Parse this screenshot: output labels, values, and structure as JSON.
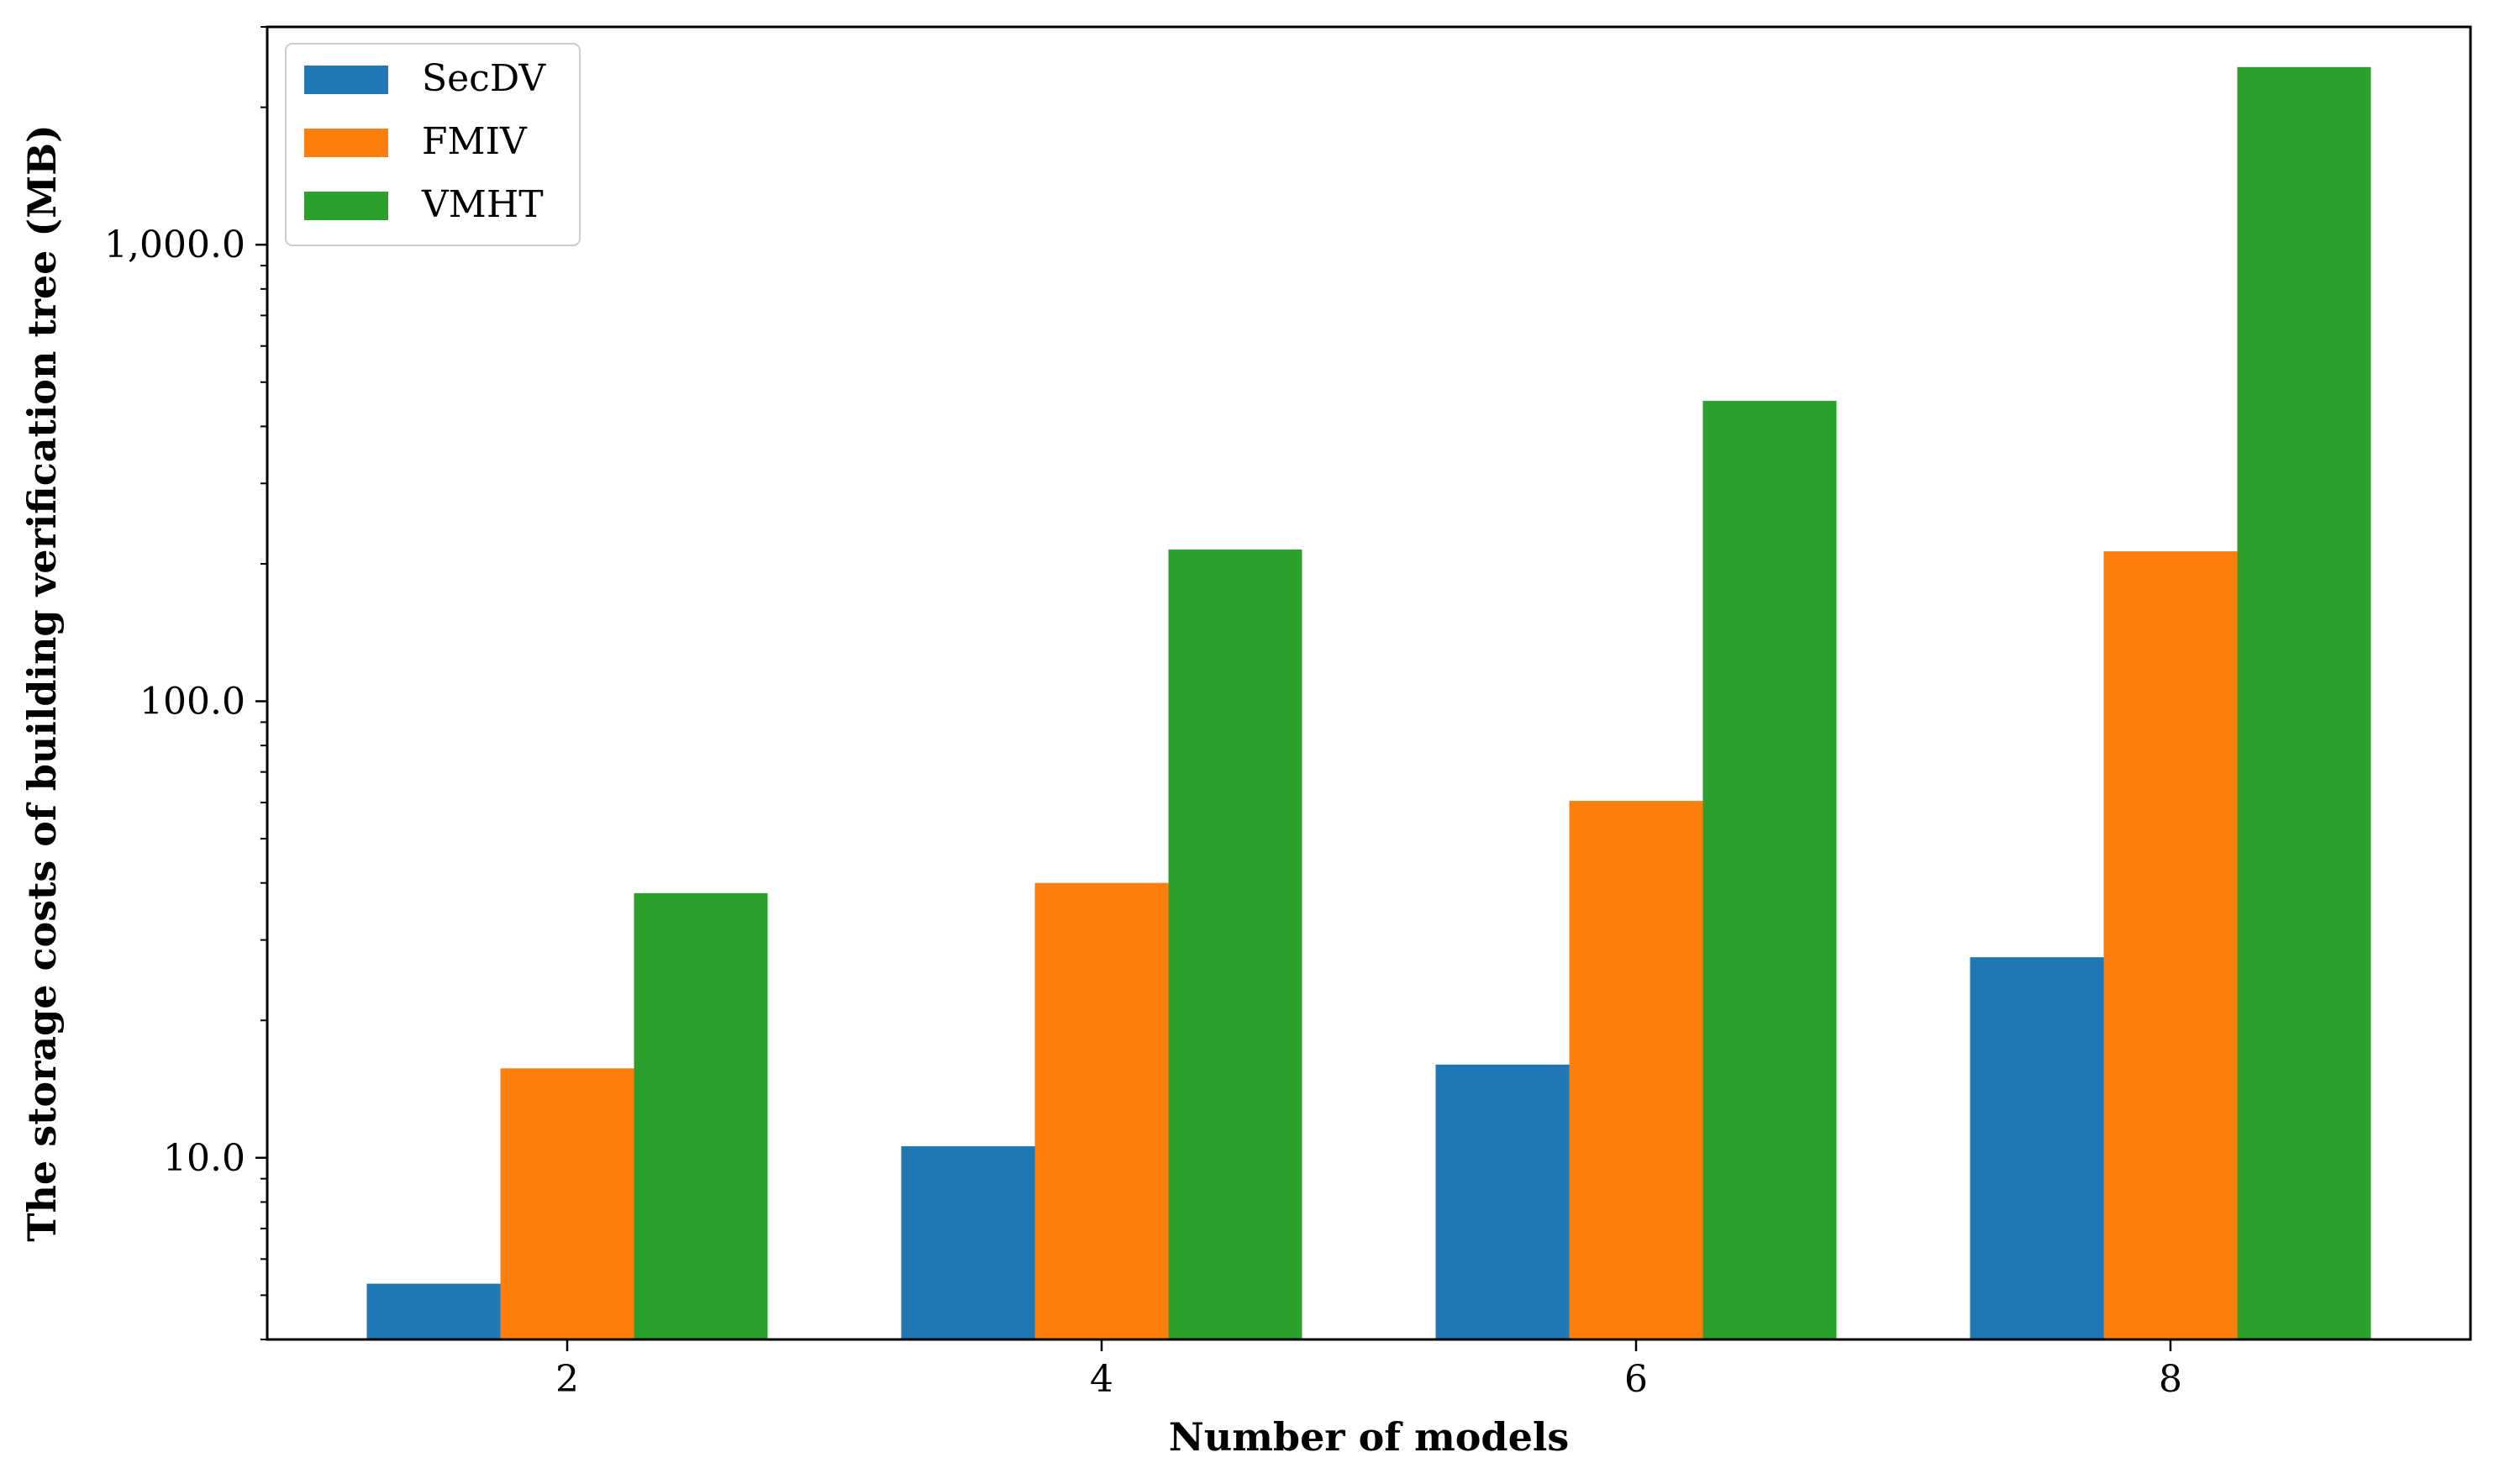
{
  "chart_data": {
    "type": "bar",
    "title": "",
    "xlabel": "Number of models",
    "ylabel": "The storage costs of building verification tree (MB)",
    "categories": [
      "2",
      "4",
      "6",
      "8"
    ],
    "y_scale": "log",
    "ylim": [
      4,
      3000
    ],
    "yticks": [
      10,
      100,
      1000
    ],
    "ytick_labels": [
      "10.0",
      "100.0",
      "1,000.0"
    ],
    "grid": false,
    "legend_position": "top-left",
    "series": [
      {
        "name": "SecDV",
        "color": "#1f77b4",
        "values": [
          5.3,
          10.6,
          16.0,
          27.5
        ]
      },
      {
        "name": "FMIV",
        "color": "#ff7f0e",
        "values": [
          15.7,
          40.0,
          60.5,
          213.0
        ]
      },
      {
        "name": "VMHT",
        "color": "#2ca02c",
        "values": [
          38.0,
          215.0,
          455.0,
          2450.0
        ]
      }
    ]
  }
}
